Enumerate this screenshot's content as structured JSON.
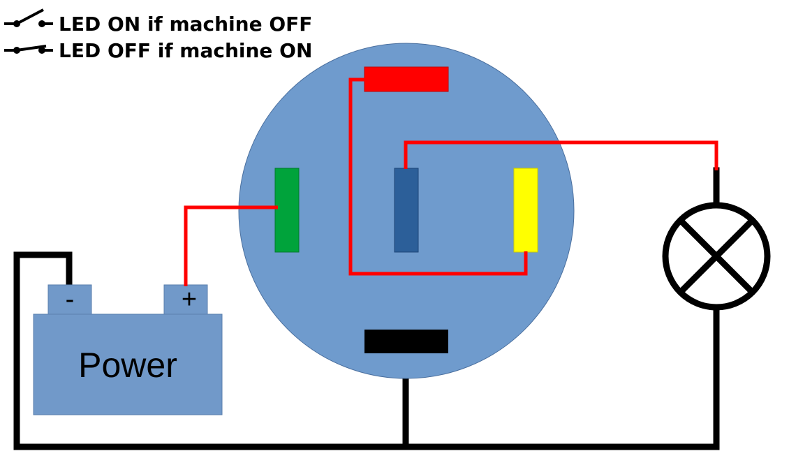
{
  "legend": {
    "items": [
      {
        "symbol": "open-switch-icon",
        "text": "LED ON if machine OFF"
      },
      {
        "symbol": "closed-switch-icon",
        "text": "LED OFF if machine ON"
      }
    ]
  },
  "battery": {
    "label": "Power",
    "negative": "-",
    "positive": "+",
    "color": "#7199c9"
  },
  "switch_body": {
    "color": "#6f9bcd",
    "border": "#4a6f9e"
  },
  "pins": {
    "top": {
      "color": "#ff0000"
    },
    "left": {
      "color": "#00a33b"
    },
    "center": {
      "color": "#2c5f99"
    },
    "right": {
      "color": "#ffff00"
    },
    "bottom": {
      "color": "#000000"
    }
  },
  "wires": {
    "signal": "#ff0000",
    "ground": "#000000"
  },
  "lamp": {
    "symbol": "lamp-icon"
  }
}
